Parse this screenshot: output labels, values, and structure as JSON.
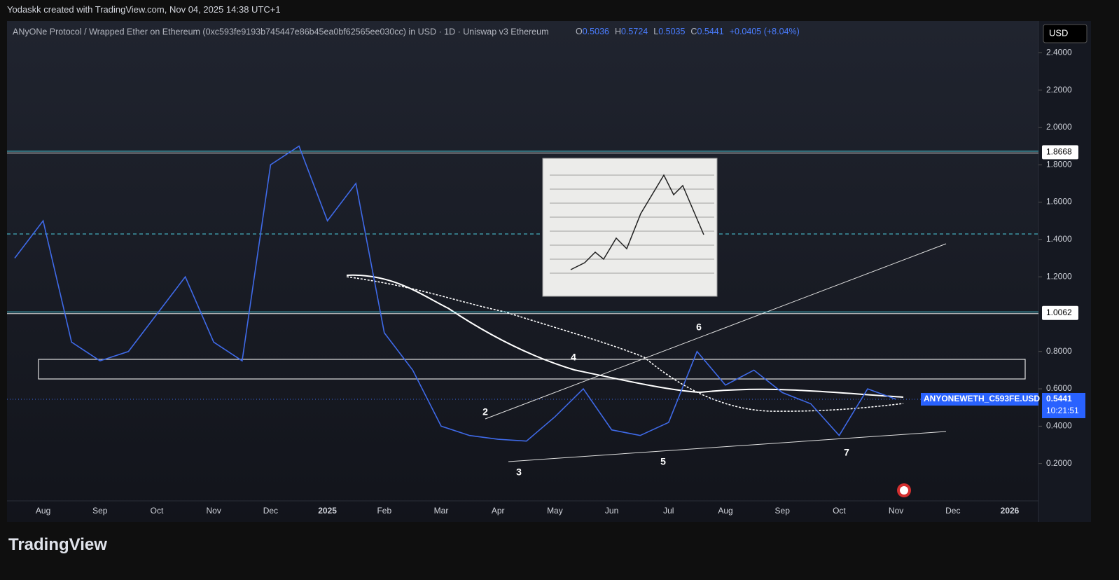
{
  "header": {
    "attribution": "Yodaskk created with TradingView.com, Nov 04, 2025 14:38 UTC+1"
  },
  "legend": {
    "symbol": "ANyONe Protocol / Wrapped Ether on Ethereum (0xc593fe9193b745447e86b45ea0bf62565ee030cc) in USD · 1D · Uniswap v3 Ethereum",
    "ohlc": [
      {
        "label": "O",
        "value": 0.5036
      },
      {
        "label": "H",
        "value": 0.5724
      },
      {
        "label": "L",
        "value": 0.5035
      },
      {
        "label": "C",
        "value": 0.5441
      }
    ],
    "change": "+0.0405 (+8.04%)"
  },
  "ui": {
    "currency": "USD"
  },
  "footer": {
    "logo": "TradingView"
  },
  "chart_data": {
    "type": "line",
    "categories": [
      null,
      "Aug",
      null,
      "Sep",
      null,
      "Oct",
      null,
      "Nov",
      null,
      "Dec",
      null,
      "2025",
      null,
      "Feb",
      null,
      "Mar",
      null,
      "Apr",
      null,
      "May",
      null,
      "Jun",
      null,
      "Jul",
      null,
      "Aug",
      null,
      "Sep",
      null,
      "Oct",
      null,
      "Nov",
      null,
      "Dec",
      null,
      "2026"
    ],
    "values": [
      1.3,
      1.5,
      0.85,
      0.75,
      0.8,
      1.0,
      1.2,
      0.85,
      0.75,
      1.8,
      1.9,
      1.5,
      1.7,
      0.9,
      0.7,
      0.4,
      0.35,
      0.33,
      0.32,
      0.45,
      0.6,
      0.38,
      0.35,
      0.42,
      0.8,
      0.62,
      0.7,
      0.58,
      0.52,
      0.35,
      0.6,
      0.5441,
      null,
      null,
      null,
      null
    ],
    "color": "#3f6ae8",
    "ylim": [
      0,
      2.57
    ],
    "yticks": [
      {
        "value": 0.2,
        "label": "0.2000"
      },
      {
        "value": 0.4,
        "label": "0.4000"
      },
      {
        "value": 0.6,
        "label": "0.6000"
      },
      {
        "value": 0.8,
        "label": "0.8000"
      },
      {
        "value": 1.2,
        "label": "1.2000"
      },
      {
        "value": 1.4,
        "label": "1.4000"
      },
      {
        "value": 1.6,
        "label": "1.6000"
      },
      {
        "value": 1.8,
        "label": "1.8000"
      },
      {
        "value": 2.0,
        "label": "2.0000"
      },
      {
        "value": 2.2,
        "label": "2.2000"
      },
      {
        "value": 2.4,
        "label": "2.4000"
      }
    ],
    "levels": [
      1.8668,
      1.0062
    ],
    "last_price": {
      "symbol": "ANYONEWETH_C593FE.USD",
      "value": 0.5441,
      "countdown": "10:21:51"
    },
    "annotations": [
      "2",
      "3",
      "4",
      "5",
      "6",
      "7"
    ]
  }
}
